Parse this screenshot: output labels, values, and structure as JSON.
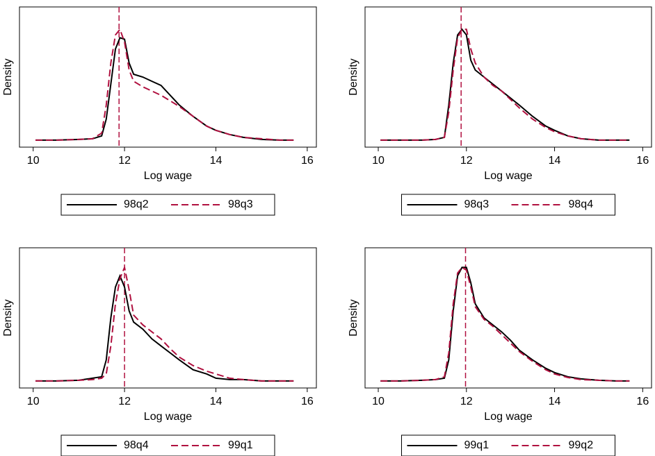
{
  "chart_data": [
    {
      "type": "line",
      "xlabel": "Log wage",
      "ylabel": "Density",
      "xlim": [
        9.7,
        16.2
      ],
      "ylim": [
        0,
        1
      ],
      "xticks": [
        10,
        12,
        14,
        16
      ],
      "vline": 11.88,
      "vline_color": "#b0103f",
      "x": [
        10.05,
        10.5,
        11,
        11.3,
        11.5,
        11.6,
        11.7,
        11.8,
        11.9,
        12,
        12.1,
        12.2,
        12.4,
        12.6,
        12.8,
        13,
        13.2,
        13.5,
        13.8,
        14,
        14.3,
        14.6,
        15,
        15.4,
        15.7
      ],
      "series": [
        {
          "name": "98q2",
          "color": "#000000",
          "style": "solid",
          "values": [
            0.05,
            0.05,
            0.055,
            0.06,
            0.08,
            0.2,
            0.45,
            0.7,
            0.78,
            0.77,
            0.6,
            0.52,
            0.5,
            0.47,
            0.44,
            0.37,
            0.3,
            0.22,
            0.15,
            0.12,
            0.09,
            0.07,
            0.055,
            0.05,
            0.05
          ]
        },
        {
          "name": "98q3",
          "color": "#b0103f",
          "style": "dashed",
          "values": [
            0.05,
            0.05,
            0.055,
            0.06,
            0.1,
            0.3,
            0.6,
            0.8,
            0.84,
            0.75,
            0.55,
            0.47,
            0.43,
            0.4,
            0.37,
            0.33,
            0.29,
            0.22,
            0.15,
            0.12,
            0.09,
            0.07,
            0.06,
            0.05,
            0.05
          ]
        }
      ]
    },
    {
      "type": "line",
      "xlabel": "Log wage",
      "ylabel": "Density",
      "xlim": [
        9.7,
        16.2
      ],
      "ylim": [
        0,
        1
      ],
      "xticks": [
        10,
        12,
        14,
        16
      ],
      "vline": 11.88,
      "vline_color": "#b0103f",
      "x": [
        10.05,
        10.5,
        11,
        11.3,
        11.5,
        11.6,
        11.7,
        11.8,
        11.9,
        12,
        12.1,
        12.2,
        12.4,
        12.6,
        12.8,
        13,
        13.2,
        13.5,
        13.8,
        14,
        14.3,
        14.6,
        15,
        15.4,
        15.7
      ],
      "series": [
        {
          "name": "98q3",
          "color": "#000000",
          "style": "solid",
          "values": [
            0.05,
            0.05,
            0.05,
            0.055,
            0.07,
            0.3,
            0.6,
            0.8,
            0.84,
            0.8,
            0.62,
            0.55,
            0.5,
            0.45,
            0.4,
            0.35,
            0.3,
            0.22,
            0.15,
            0.12,
            0.08,
            0.06,
            0.05,
            0.05,
            0.05
          ]
        },
        {
          "name": "98q4",
          "color": "#b0103f",
          "style": "dashed",
          "values": [
            0.05,
            0.05,
            0.05,
            0.055,
            0.07,
            0.25,
            0.55,
            0.78,
            0.84,
            0.84,
            0.7,
            0.6,
            0.5,
            0.44,
            0.4,
            0.34,
            0.28,
            0.2,
            0.14,
            0.11,
            0.08,
            0.06,
            0.05,
            0.05,
            0.05
          ]
        }
      ]
    },
    {
      "type": "line",
      "xlabel": "Log wage",
      "ylabel": "Density",
      "xlim": [
        9.7,
        16.2
      ],
      "ylim": [
        0,
        1
      ],
      "xticks": [
        10,
        12,
        14,
        16
      ],
      "vline": 12.0,
      "vline_color": "#b0103f",
      "x": [
        10.05,
        10.5,
        11,
        11.3,
        11.5,
        11.6,
        11.7,
        11.8,
        11.9,
        12,
        12.1,
        12.2,
        12.4,
        12.6,
        12.8,
        13,
        13.2,
        13.5,
        13.8,
        14,
        14.3,
        14.6,
        15,
        15.4,
        15.7
      ],
      "series": [
        {
          "name": "98q4",
          "color": "#000000",
          "style": "solid",
          "values": [
            0.05,
            0.05,
            0.055,
            0.07,
            0.08,
            0.2,
            0.5,
            0.72,
            0.8,
            0.72,
            0.55,
            0.47,
            0.42,
            0.35,
            0.3,
            0.25,
            0.2,
            0.13,
            0.1,
            0.07,
            0.06,
            0.06,
            0.05,
            0.05,
            0.05
          ]
        },
        {
          "name": "99q1",
          "color": "#b0103f",
          "style": "dashed",
          "values": [
            0.05,
            0.05,
            0.055,
            0.06,
            0.07,
            0.1,
            0.3,
            0.6,
            0.78,
            0.86,
            0.7,
            0.52,
            0.45,
            0.4,
            0.35,
            0.28,
            0.22,
            0.16,
            0.12,
            0.1,
            0.07,
            0.06,
            0.05,
            0.05,
            0.05
          ]
        }
      ]
    },
    {
      "type": "line",
      "xlabel": "Log wage",
      "ylabel": "Density",
      "xlim": [
        9.7,
        16.2
      ],
      "ylim": [
        0,
        1
      ],
      "xticks": [
        10,
        12,
        14,
        16
      ],
      "vline": 11.98,
      "vline_color": "#b0103f",
      "x": [
        10.05,
        10.5,
        11,
        11.3,
        11.5,
        11.6,
        11.7,
        11.8,
        11.9,
        12,
        12.1,
        12.2,
        12.4,
        12.6,
        12.8,
        13,
        13.2,
        13.5,
        13.8,
        14,
        14.3,
        14.6,
        15,
        15.4,
        15.7
      ],
      "series": [
        {
          "name": "99q1",
          "color": "#000000",
          "style": "solid",
          "values": [
            0.05,
            0.05,
            0.055,
            0.06,
            0.07,
            0.2,
            0.55,
            0.8,
            0.86,
            0.86,
            0.75,
            0.6,
            0.5,
            0.45,
            0.4,
            0.34,
            0.27,
            0.2,
            0.14,
            0.11,
            0.08,
            0.065,
            0.055,
            0.05,
            0.05
          ]
        },
        {
          "name": "99q2",
          "color": "#b0103f",
          "style": "dashed",
          "values": [
            0.05,
            0.05,
            0.055,
            0.06,
            0.08,
            0.25,
            0.6,
            0.82,
            0.86,
            0.84,
            0.72,
            0.58,
            0.49,
            0.44,
            0.38,
            0.32,
            0.26,
            0.19,
            0.13,
            0.1,
            0.075,
            0.06,
            0.055,
            0.05,
            0.05
          ]
        }
      ]
    }
  ]
}
